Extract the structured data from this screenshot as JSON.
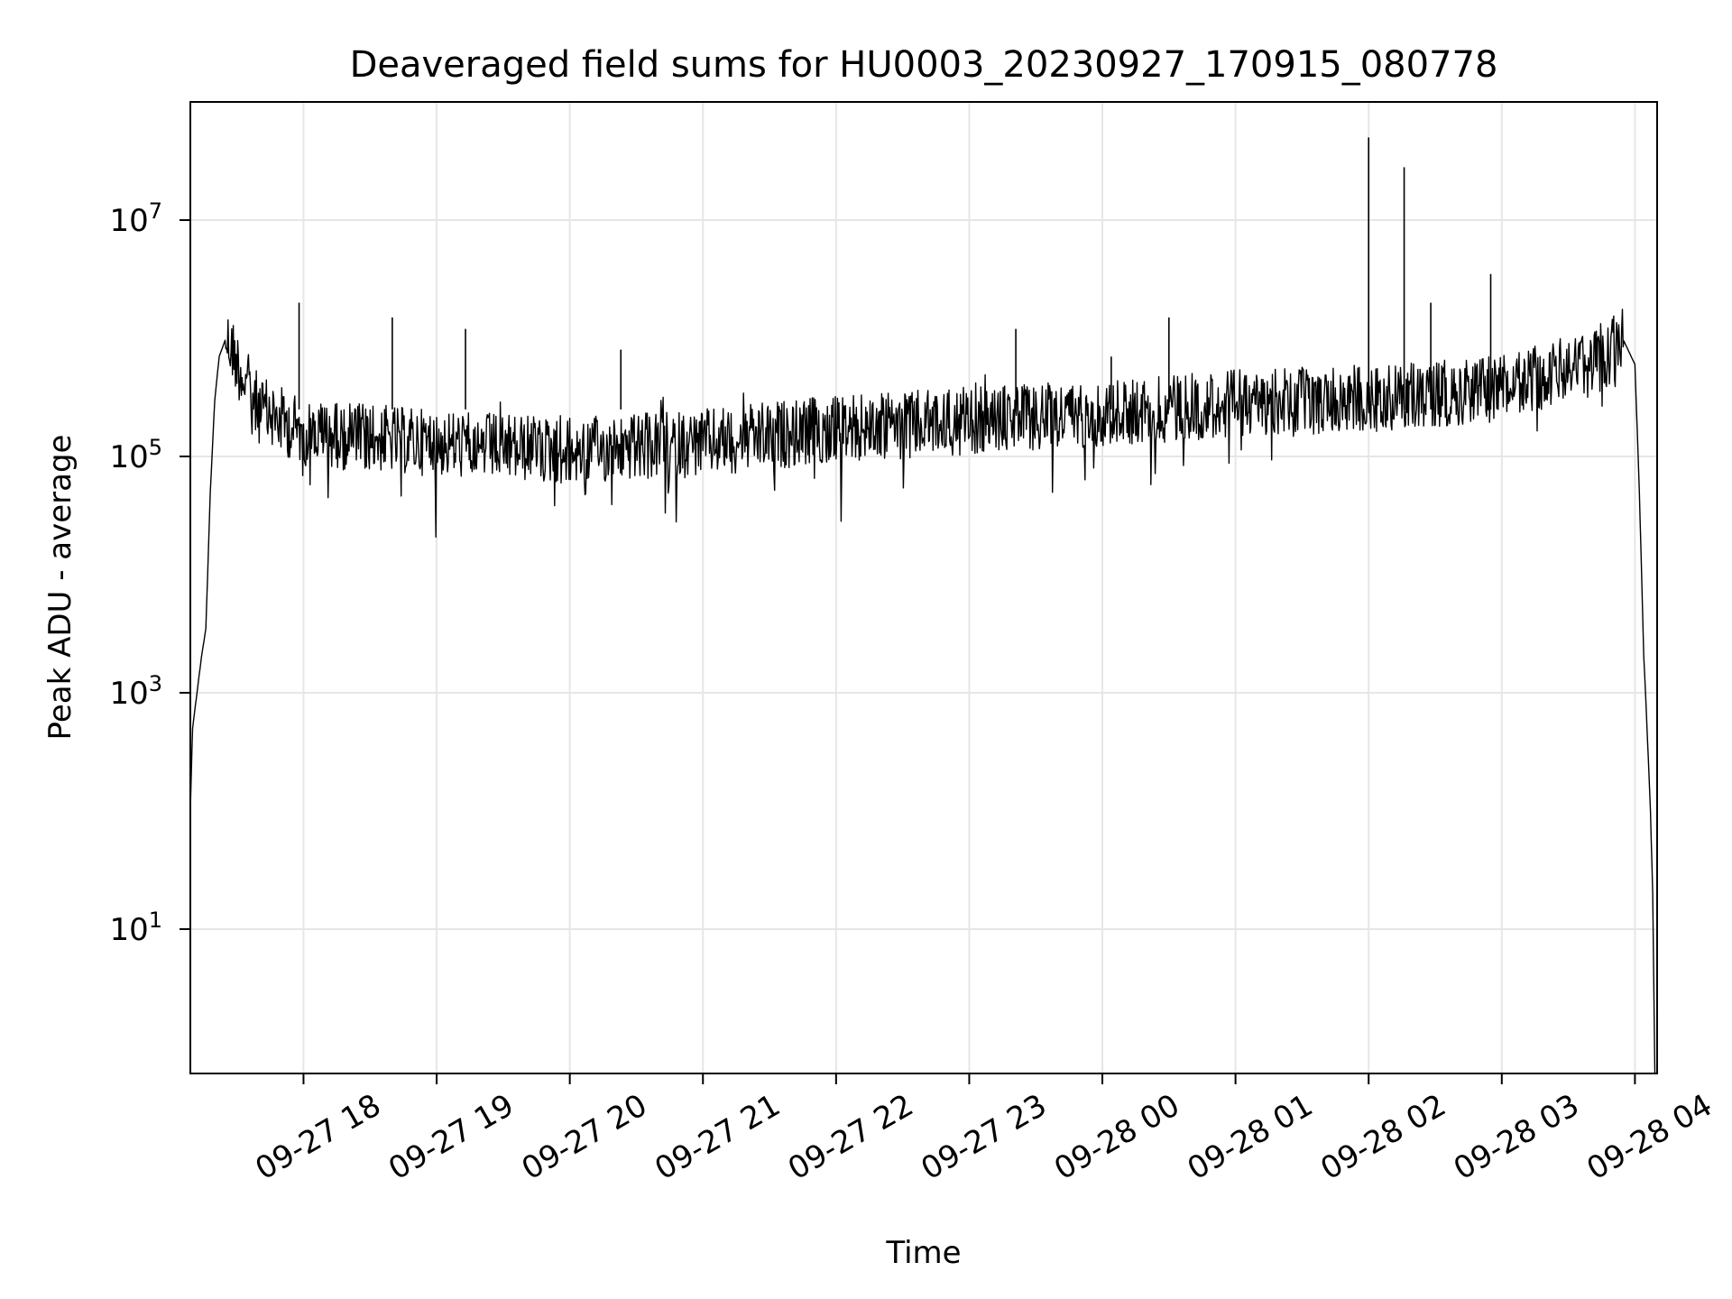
{
  "chart_data": {
    "type": "line",
    "title": "Deaveraged field sums for HU0003_20230927_170915_080778",
    "xlabel": "Time",
    "ylabel": "Peak ADU - average",
    "yscale": "log",
    "grid": true,
    "legend": "none",
    "series_color": "#000000",
    "xlim": [
      "2023-09-27 17:09",
      "2023-09-28 04:10"
    ],
    "ylim": [
      0.6,
      100000000
    ],
    "x_ticks": [
      {
        "value": "2023-09-27 18:00",
        "label": "09-27 18"
      },
      {
        "value": "2023-09-27 19:00",
        "label": "09-27 19"
      },
      {
        "value": "2023-09-27 20:00",
        "label": "09-27 20"
      },
      {
        "value": "2023-09-27 21:00",
        "label": "09-27 21"
      },
      {
        "value": "2023-09-27 22:00",
        "label": "09-27 22"
      },
      {
        "value": "2023-09-27 23:00",
        "label": "09-27 23"
      },
      {
        "value": "2023-09-28 00:00",
        "label": "09-28 00"
      },
      {
        "value": "2023-09-28 01:00",
        "label": "09-28 01"
      },
      {
        "value": "2023-09-28 02:00",
        "label": "09-28 02"
      },
      {
        "value": "2023-09-28 03:00",
        "label": "09-28 03"
      },
      {
        "value": "2023-09-28 04:00",
        "label": "09-28 04"
      }
    ],
    "y_ticks": [
      {
        "value": 10,
        "base": "10",
        "exp": "1"
      },
      {
        "value": 1000,
        "base": "10",
        "exp": "3"
      },
      {
        "value": 100000,
        "base": "10",
        "exp": "5"
      },
      {
        "value": 10000000,
        "base": "10",
        "exp": "7"
      }
    ],
    "series": [
      {
        "points": [
          [
            "2023-09-27 17:09",
            100
          ],
          [
            "2023-09-27 17:10",
            500
          ],
          [
            "2023-09-27 17:12",
            1000
          ],
          [
            "2023-09-27 17:14",
            2000
          ],
          [
            "2023-09-27 17:16",
            3500
          ],
          [
            "2023-09-27 17:18",
            50000
          ],
          [
            "2023-09-27 17:20",
            300000
          ],
          [
            "2023-09-27 17:22",
            700000
          ],
          [
            "2023-09-27 17:25",
            1000000
          ],
          [
            "2023-09-27 17:28",
            800000
          ],
          [
            "2023-09-27 17:32",
            500000
          ],
          [
            "2023-09-27 17:40",
            250000
          ],
          [
            "2023-09-27 18:00",
            160000
          ],
          [
            "2023-09-27 19:00",
            130000
          ],
          [
            "2023-09-27 20:00",
            110000
          ],
          [
            "2023-09-27 21:00",
            130000
          ],
          [
            "2023-09-27 22:00",
            170000
          ],
          [
            "2023-09-27 23:00",
            200000
          ],
          [
            "2023-09-28 00:00",
            230000
          ],
          [
            "2023-09-28 01:00",
            280000
          ],
          [
            "2023-09-28 02:00",
            310000
          ],
          [
            "2023-09-28 03:00",
            380000
          ],
          [
            "2023-09-28 03:40",
            600000
          ],
          [
            "2023-09-28 03:55",
            950000
          ],
          [
            "2023-09-28 04:00",
            600000
          ],
          [
            "2023-09-28 04:02",
            50000
          ],
          [
            "2023-09-28 04:04",
            2000
          ],
          [
            "2023-09-28 04:05",
            800
          ],
          [
            "2023-09-28 04:07",
            100
          ],
          [
            "2023-09-28 04:08",
            20
          ],
          [
            "2023-09-28 04:09",
            0.6
          ]
        ],
        "spikes": [
          [
            "2023-09-27 17:58",
            2000000
          ],
          [
            "2023-09-27 18:40",
            1500000
          ],
          [
            "2023-09-27 19:13",
            1200000
          ],
          [
            "2023-09-27 20:23",
            800000
          ],
          [
            "2023-09-27 23:21",
            1200000
          ],
          [
            "2023-09-28 00:04",
            700000
          ],
          [
            "2023-09-28 00:30",
            1500000
          ],
          [
            "2023-09-28 02:00",
            50000000
          ],
          [
            "2023-09-28 02:16",
            28000000
          ],
          [
            "2023-09-28 02:28",
            2000000
          ],
          [
            "2023-09-28 02:55",
            3500000
          ]
        ]
      }
    ]
  }
}
